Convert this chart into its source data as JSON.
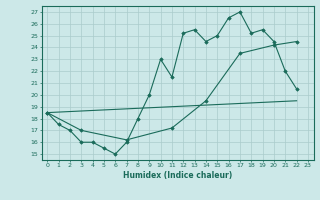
{
  "title": "",
  "xlabel": "Humidex (Indice chaleur)",
  "bg_color": "#cce8e8",
  "grid_color": "#aacccc",
  "line_color": "#1a6b5a",
  "xlim": [
    -0.5,
    23.5
  ],
  "ylim": [
    14.5,
    27.5
  ],
  "xticks": [
    0,
    1,
    2,
    3,
    4,
    5,
    6,
    7,
    8,
    9,
    10,
    11,
    12,
    13,
    14,
    15,
    16,
    17,
    18,
    19,
    20,
    21,
    22,
    23
  ],
  "yticks": [
    15,
    16,
    17,
    18,
    19,
    20,
    21,
    22,
    23,
    24,
    25,
    26,
    27
  ],
  "line1_x": [
    0,
    1,
    2,
    3,
    4,
    5,
    6,
    7,
    8,
    9,
    10,
    11,
    12,
    13,
    14,
    15,
    16,
    17,
    18,
    19,
    20,
    21,
    22
  ],
  "line1_y": [
    18.5,
    17.5,
    17.0,
    16.0,
    16.0,
    15.5,
    15.0,
    16.0,
    18.0,
    20.0,
    23.0,
    21.5,
    25.2,
    25.5,
    24.5,
    25.0,
    26.5,
    27.0,
    25.2,
    25.5,
    24.5,
    22.0,
    20.5
  ],
  "line2_x": [
    0,
    22
  ],
  "line2_y": [
    18.5,
    19.5
  ],
  "line3_x": [
    0,
    3,
    7,
    11,
    14,
    17,
    20,
    22
  ],
  "line3_y": [
    18.5,
    17.0,
    16.2,
    17.2,
    19.5,
    23.5,
    24.2,
    24.5
  ]
}
